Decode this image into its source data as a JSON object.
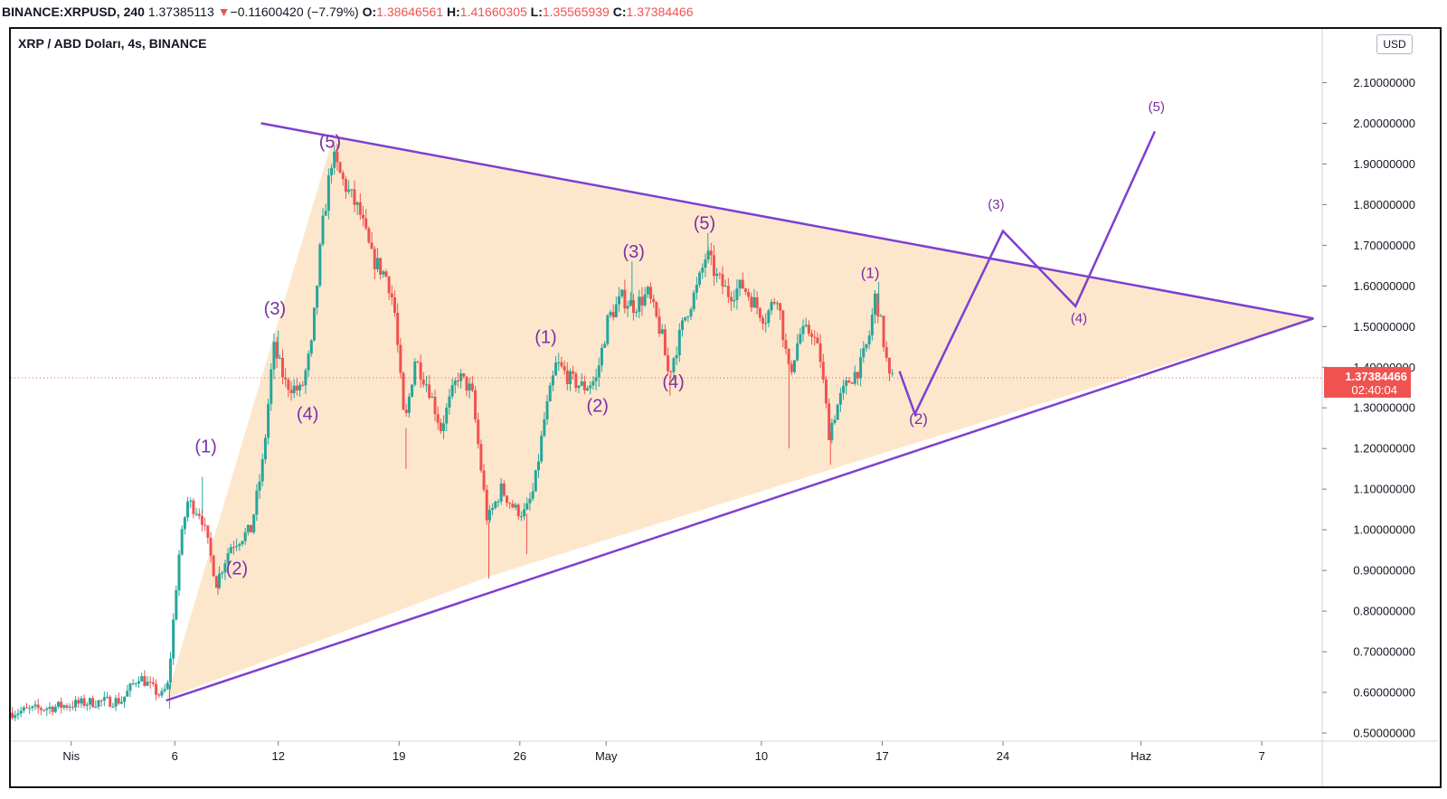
{
  "header": {
    "symbol": "BINANCE:XRPUSD, 240",
    "last": "1.37385113",
    "change_arrow": "▼",
    "change": "−0.11600420 (−7.79%)",
    "o_label": "O:",
    "o": "1.38646561",
    "h_label": "H:",
    "h": "1.41660305",
    "l_label": "L:",
    "l": "1.35565939",
    "c_label": "C:",
    "c": "1.37384466"
  },
  "pane_title": "XRP / ABD Doları, 4s, BINANCE",
  "currency_button": "USD",
  "colors": {
    "up": "#26a69a",
    "down": "#ef5350",
    "pattern_line": "#7e3fd0",
    "pattern_fill": "#fde3c3",
    "wave_label": "#7b2fa8",
    "price_tag_bg": "#ef5350"
  },
  "chart_data": {
    "type": "candlestick",
    "interval": "4h",
    "y_axis": {
      "ticks": [
        "2.10000000",
        "2.00000000",
        "1.90000000",
        "1.80000000",
        "1.70000000",
        "1.60000000",
        "1.50000000",
        "1.40000000",
        "1.30000000",
        "1.20000000",
        "1.10000000",
        "1.00000000",
        "0.90000000",
        "0.80000000",
        "0.70000000",
        "0.60000000",
        "0.50000000"
      ],
      "ylim": [
        0.48,
        2.17
      ]
    },
    "x_axis": {
      "ticks": [
        "Nis",
        "6",
        "12",
        "19",
        "26",
        "May",
        "10",
        "17",
        "24",
        "Haz",
        "7"
      ],
      "tick_days": [
        -1,
        5,
        11,
        18,
        25,
        30,
        39,
        46,
        53,
        61,
        68
      ],
      "xlim": [
        -4.5,
        71.5
      ]
    },
    "current_price_label": "1.37384466",
    "countdown_label": "02:40:04",
    "current_price": 1.37384466,
    "price_path": [
      [
        -4.5,
        0.55
      ],
      [
        0,
        0.575
      ],
      [
        2,
        0.58
      ],
      [
        3,
        0.64
      ],
      [
        4.3,
        0.59
      ],
      [
        4.7,
        0.62
      ],
      [
        5.3,
        0.93
      ],
      [
        5.8,
        1.07
      ],
      [
        6.6,
        1.04
      ],
      [
        7.5,
        0.87
      ],
      [
        8.3,
        0.96
      ],
      [
        9.5,
        1.0
      ],
      [
        10.2,
        1.17
      ],
      [
        10.8,
        1.45
      ],
      [
        11.5,
        1.36
      ],
      [
        12.4,
        1.34
      ],
      [
        13.0,
        1.45
      ],
      [
        13.6,
        1.73
      ],
      [
        14.2,
        1.92
      ],
      [
        14.8,
        1.86
      ],
      [
        15.8,
        1.78
      ],
      [
        16.5,
        1.67
      ],
      [
        17.4,
        1.62
      ],
      [
        17.8,
        1.55
      ],
      [
        18.4,
        1.25
      ],
      [
        19.0,
        1.42
      ],
      [
        19.8,
        1.35
      ],
      [
        20.5,
        1.25
      ],
      [
        21.5,
        1.38
      ],
      [
        22.3,
        1.34
      ],
      [
        23.2,
        1.02
      ],
      [
        24.0,
        1.1
      ],
      [
        24.8,
        1.05
      ],
      [
        25.4,
        1.04
      ],
      [
        25.9,
        1.1
      ],
      [
        26.5,
        1.27
      ],
      [
        27.2,
        1.41
      ],
      [
        28.0,
        1.37
      ],
      [
        28.8,
        1.35
      ],
      [
        29.5,
        1.37
      ],
      [
        30.2,
        1.52
      ],
      [
        31.0,
        1.57
      ],
      [
        31.7,
        1.55
      ],
      [
        32.5,
        1.58
      ],
      [
        33.3,
        1.48
      ],
      [
        33.7,
        1.38
      ],
      [
        34.7,
        1.53
      ],
      [
        35.4,
        1.6
      ],
      [
        35.9,
        1.68
      ],
      [
        36.5,
        1.62
      ],
      [
        37.2,
        1.58
      ],
      [
        38.0,
        1.6
      ],
      [
        38.8,
        1.55
      ],
      [
        39.3,
        1.52
      ],
      [
        40.0,
        1.58
      ],
      [
        40.7,
        1.38
      ],
      [
        41.3,
        1.48
      ],
      [
        42.0,
        1.49
      ],
      [
        42.5,
        1.42
      ],
      [
        43.0,
        1.24
      ],
      [
        43.6,
        1.32
      ],
      [
        44.2,
        1.37
      ],
      [
        44.8,
        1.4
      ],
      [
        45.3,
        1.47
      ],
      [
        45.7,
        1.58
      ],
      [
        46.1,
        1.48
      ],
      [
        46.5,
        1.37
      ]
    ],
    "lows": [
      [
        23.2,
        0.88
      ],
      [
        7.5,
        0.84
      ],
      [
        40.6,
        1.2
      ],
      [
        43.0,
        1.16
      ],
      [
        25.4,
        0.94
      ],
      [
        4.7,
        0.56
      ],
      [
        18.4,
        1.15
      ],
      [
        33.7,
        1.33
      ]
    ],
    "highs": [
      [
        14.2,
        1.93
      ],
      [
        35.9,
        1.73
      ],
      [
        6.6,
        1.13
      ],
      [
        11.0,
        1.49
      ],
      [
        45.8,
        1.61
      ],
      [
        31.5,
        1.66
      ]
    ],
    "pattern": {
      "impulse_fill": [
        [
          4.5,
          0.585
        ],
        [
          14.2,
          1.97
        ],
        [
          71.0,
          1.52
        ],
        [
          23.2,
          0.885
        ]
      ],
      "upper_line": [
        [
          10.0,
          2.0
        ],
        [
          71.0,
          1.52
        ]
      ],
      "lower_line": [
        [
          4.5,
          0.58
        ],
        [
          71.0,
          1.52
        ]
      ]
    },
    "projection": [
      [
        47.0,
        1.39
      ],
      [
        47.9,
        1.285
      ],
      [
        53.0,
        1.735
      ],
      [
        57.2,
        1.55
      ],
      [
        61.8,
        1.98
      ]
    ],
    "wave_labels": [
      {
        "text": "(1)",
        "x": 6.8,
        "y": 1.19,
        "size": 20
      },
      {
        "text": "(2)",
        "x": 8.6,
        "y": 0.89,
        "size": 20
      },
      {
        "text": "(3)",
        "x": 10.8,
        "y": 1.53,
        "size": 20
      },
      {
        "text": "(4)",
        "x": 12.7,
        "y": 1.27,
        "size": 20
      },
      {
        "text": "(5)",
        "x": 14.0,
        "y": 1.94,
        "size": 20
      },
      {
        "text": "(1)",
        "x": 26.5,
        "y": 1.46,
        "size": 20
      },
      {
        "text": "(2)",
        "x": 29.5,
        "y": 1.29,
        "size": 20
      },
      {
        "text": "(3)",
        "x": 31.6,
        "y": 1.67,
        "size": 20
      },
      {
        "text": "(4)",
        "x": 33.9,
        "y": 1.35,
        "size": 20
      },
      {
        "text": "(5)",
        "x": 35.7,
        "y": 1.74,
        "size": 20
      },
      {
        "text": "(1)",
        "x": 45.3,
        "y": 1.62,
        "size": 17
      },
      {
        "text": "(2)",
        "x": 48.1,
        "y": 1.26,
        "size": 17
      },
      {
        "text": "(3)",
        "x": 52.6,
        "y": 1.79,
        "size": 15
      },
      {
        "text": "(4)",
        "x": 57.4,
        "y": 1.51,
        "size": 15
      },
      {
        "text": "(5)",
        "x": 61.9,
        "y": 2.03,
        "size": 15
      }
    ]
  }
}
